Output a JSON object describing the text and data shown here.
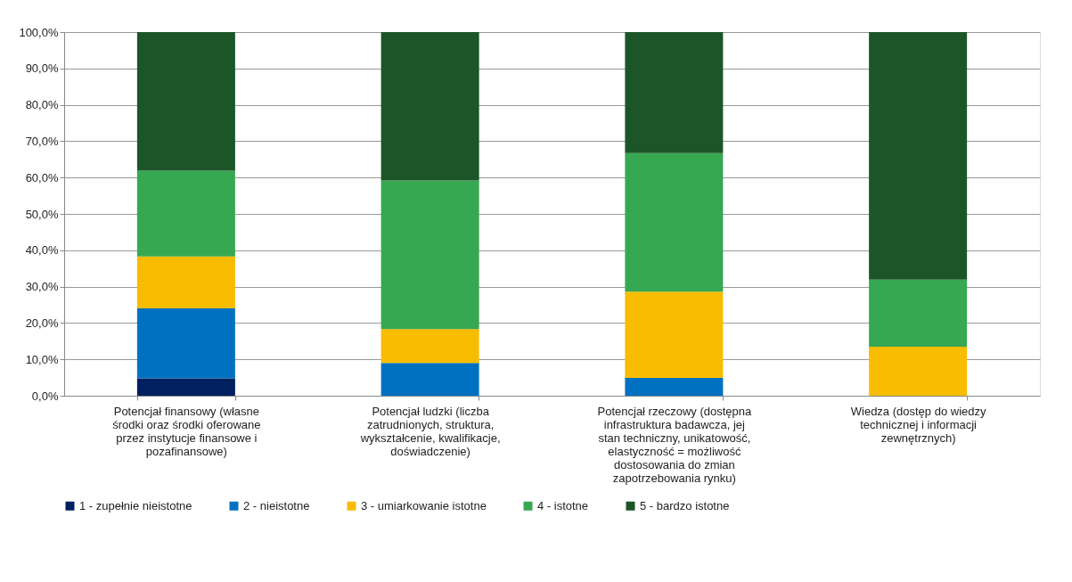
{
  "chart_data": {
    "type": "bar",
    "stacked": true,
    "categories": [
      "Potencjał finansowy (własne środki oraz środki oferowane przez instytucje finansowe i pozafinansowe)",
      "Potencjał ludzki (liczba zatrudnionych, struktura, wykształcenie, kwalifikacje, doświadczenie)",
      "Potencjał rzeczowy (dostępna infrastruktura badawcza, jej stan techniczny, unikatowość, elastyczność = możliwość dostosowania do zmian zapotrzebowania rynku)",
      "Wiedza (dostęp do wiedzy technicznej i informacji zewnętrznych)"
    ],
    "series": [
      {
        "name": "1 - zupełnie nieistotne",
        "color": "#002060",
        "values": [
          4.8,
          0,
          0,
          0
        ]
      },
      {
        "name": "2 - nieistotne",
        "color": "#0070c0",
        "values": [
          19.2,
          9.0,
          4.9,
          0
        ]
      },
      {
        "name": "3 - umiarkowanie istotne",
        "color": "#f8bc00",
        "values": [
          14.3,
          9.3,
          23.7,
          13.5
        ]
      },
      {
        "name": "4 - istotne",
        "color": "#36a852",
        "values": [
          23.6,
          40.9,
          38.1,
          18.4
        ]
      },
      {
        "name": "5 - bardzo istotne",
        "color": "#1b5528",
        "values": [
          38.1,
          40.8,
          33.3,
          68.1
        ]
      }
    ],
    "ylim": [
      0,
      100
    ],
    "yticks": [
      {
        "value": 0,
        "label": "0,0%"
      },
      {
        "value": 10,
        "label": "10,0%"
      },
      {
        "value": 20,
        "label": "20,0%"
      },
      {
        "value": 30,
        "label": "30,0%"
      },
      {
        "value": 40,
        "label": "40,0%"
      },
      {
        "value": 50,
        "label": "50,0%"
      },
      {
        "value": 60,
        "label": "60,0%"
      },
      {
        "value": 70,
        "label": "70,0%"
      },
      {
        "value": 80,
        "label": "80,0%"
      },
      {
        "value": 90,
        "label": "90,0%"
      },
      {
        "value": 100,
        "label": "100,0%"
      }
    ],
    "grid": "y",
    "legend": "bottom"
  }
}
